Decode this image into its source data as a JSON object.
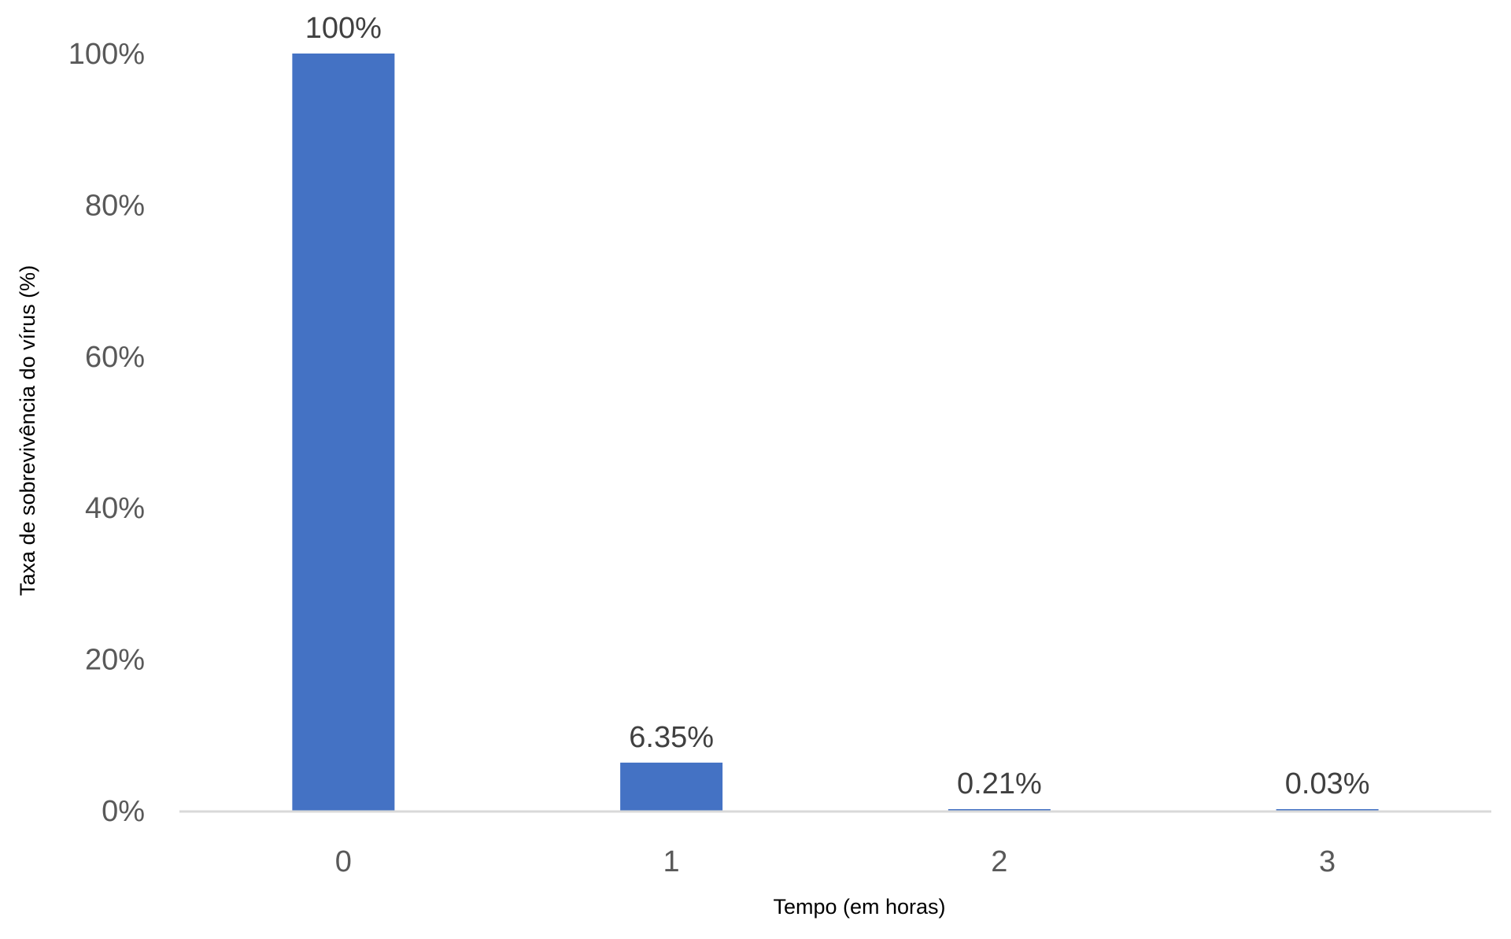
{
  "chart_data": {
    "type": "bar",
    "categories": [
      "0",
      "1",
      "2",
      "3"
    ],
    "values": [
      100,
      6.35,
      0.21,
      0.03
    ],
    "data_labels": [
      "100%",
      "6.35%",
      "0.21%",
      "0.03%"
    ],
    "title": "",
    "xlabel": "Tempo (em horas)",
    "ylabel": "Taxa de sobrevivência do vírus (%)",
    "ylim": [
      0,
      100
    ],
    "yticks": [
      0,
      20,
      40,
      60,
      80,
      100
    ],
    "ytick_labels": [
      "0%",
      "20%",
      "40%",
      "60%",
      "80%",
      "100%"
    ],
    "grid": false,
    "legend": "none",
    "bar_color": "#4472C4",
    "axis_color": "#D9D9D9"
  }
}
